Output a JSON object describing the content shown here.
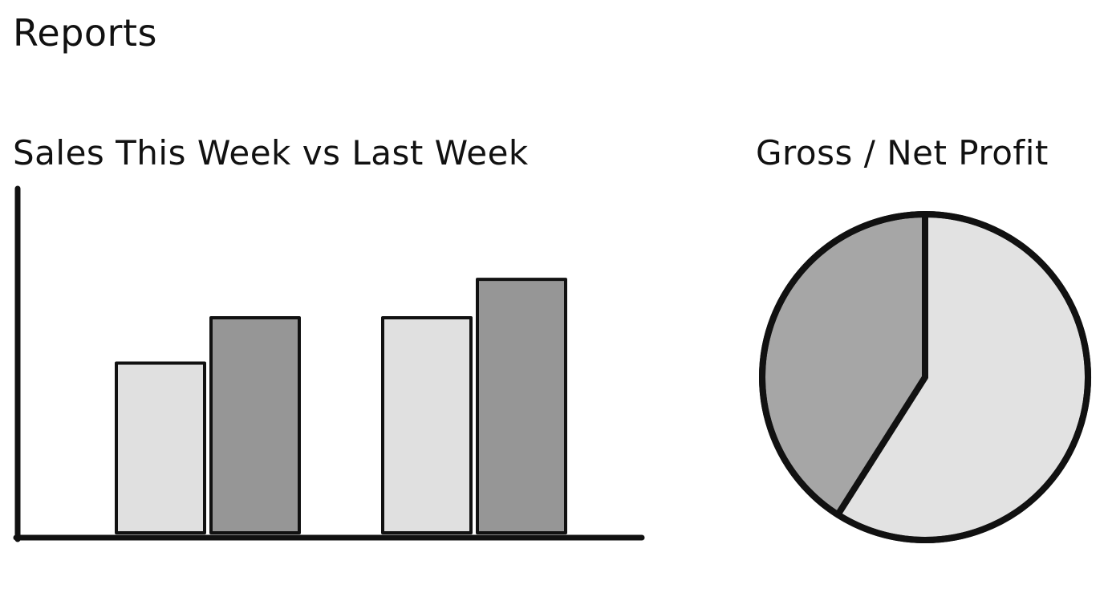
{
  "page": {
    "title": "Reports"
  },
  "colors": {
    "light": "#e0e0e0",
    "dark": "#969696",
    "pie_dark": "#a6a6a6",
    "pie_light": "#e2e2e2",
    "stroke": "#111111"
  },
  "chart_data": [
    {
      "type": "bar",
      "title": "Sales This Week vs Last Week",
      "categories": [
        "",
        ""
      ],
      "series": [
        {
          "values": [
            5,
            6.3
          ]
        },
        {
          "values": [
            6.3,
            7.4
          ]
        }
      ],
      "ylim": [
        0,
        10
      ],
      "grid": false,
      "legend": "none"
    },
    {
      "type": "pie",
      "title": "Gross / Net Profit",
      "values": [
        59,
        41
      ],
      "legend": "none"
    }
  ]
}
